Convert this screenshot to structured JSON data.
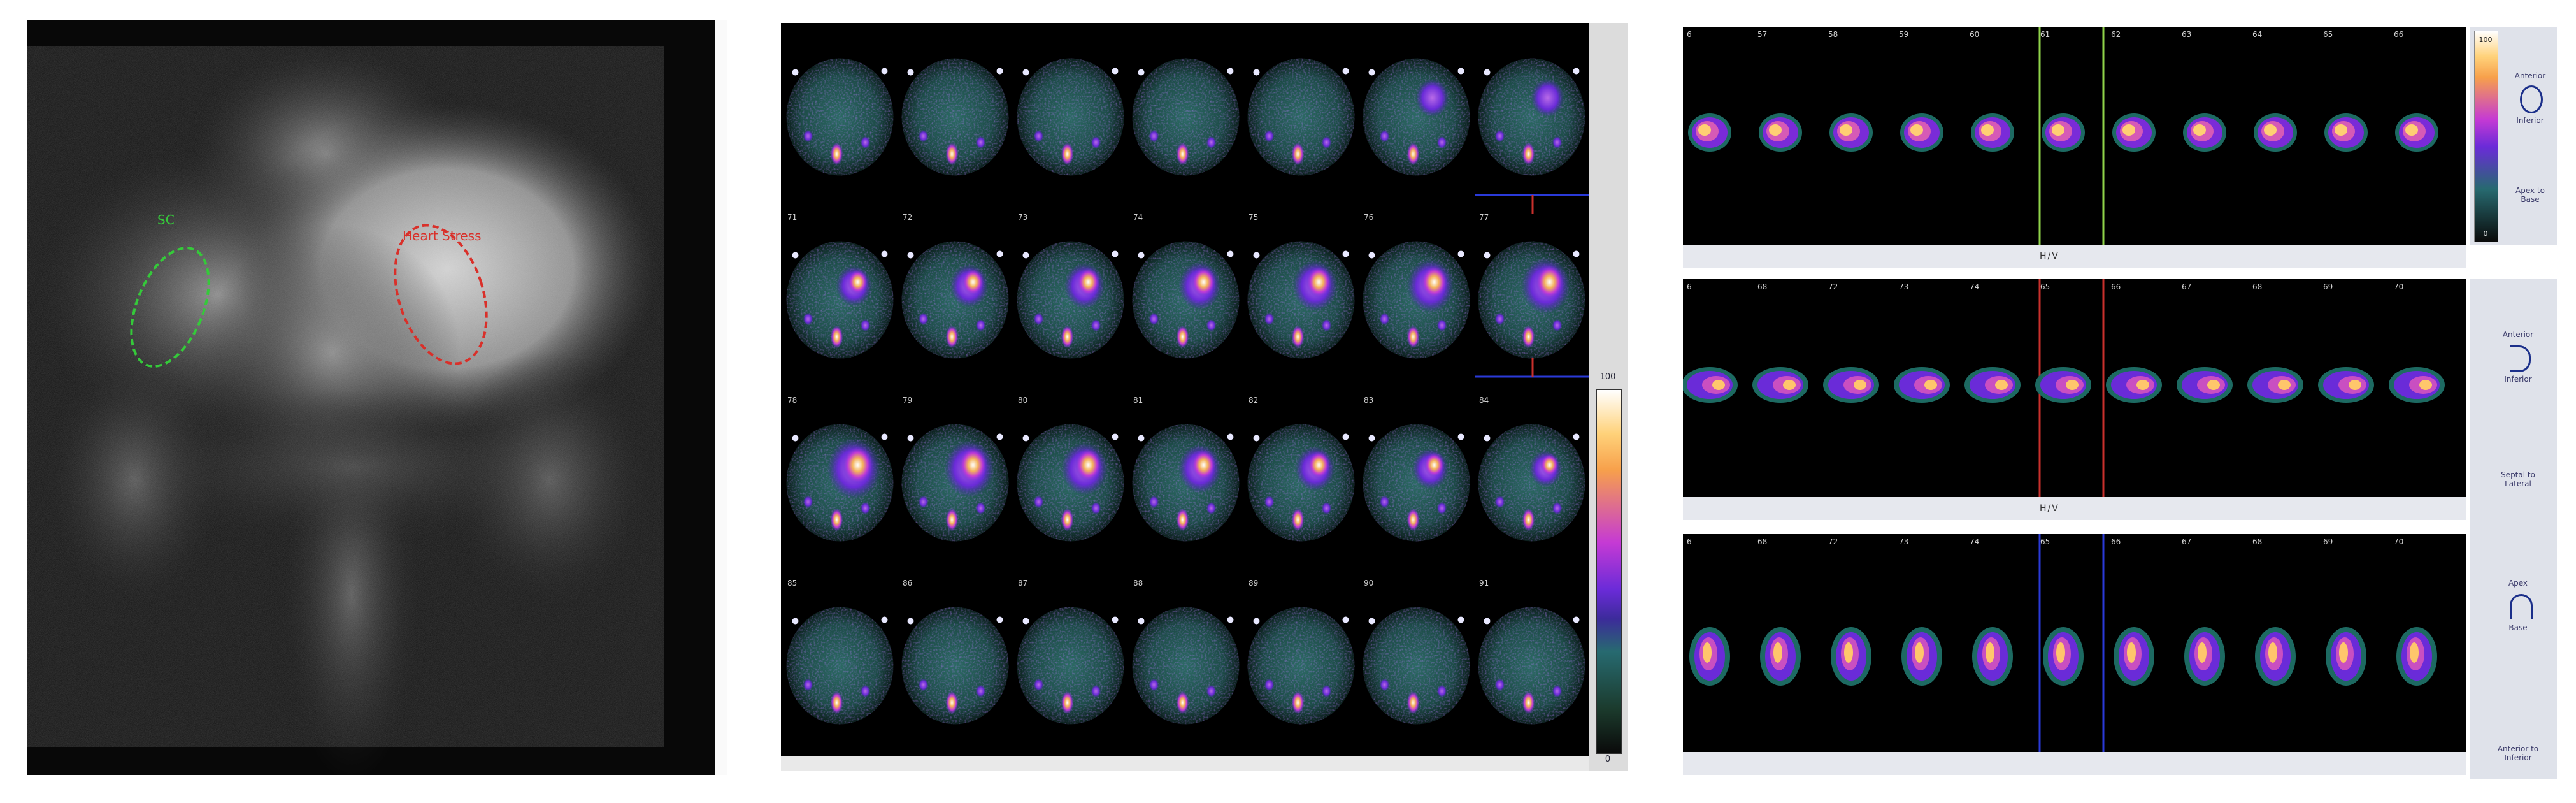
{
  "planar_image": {
    "roi_left_label": "SC",
    "roi_right_label": "Heart Stress"
  },
  "spect_slices": {
    "row_labels": [
      [
        "",
        "",
        "",
        "",
        "",
        "",
        ""
      ],
      [
        "71",
        "72",
        "73",
        "74",
        "75",
        "76",
        "77"
      ],
      [
        "78",
        "79",
        "80",
        "81",
        "82",
        "83",
        "84"
      ],
      [
        "85",
        "86",
        "87",
        "88",
        "89",
        "90",
        "91"
      ]
    ],
    "scale_max": "100",
    "scale_min": "0"
  },
  "views": {
    "row_headers": [
      [
        "6",
        "57",
        "58",
        "59",
        "60",
        "61",
        "62",
        "63",
        "64",
        "65",
        "66"
      ],
      [
        "6",
        "68",
        "72",
        "73",
        "74",
        "65",
        "66",
        "67",
        "68",
        "69",
        "70"
      ],
      [
        "6",
        "68",
        "72",
        "73",
        "74",
        "65",
        "66",
        "67",
        "68",
        "69",
        "70"
      ]
    ],
    "bar_labels": [
      "H/V",
      "H/V",
      ""
    ],
    "side_labels": [
      {
        "top": "Anterior",
        "mid": "Inferior",
        "bottom": "Apex to Base"
      },
      {
        "top": "Anterior",
        "mid": "Inferior",
        "bottom": "Septal to Lateral"
      },
      {
        "top": "Apex",
        "mid": "Base",
        "bottom": "Anterior to Inferior"
      }
    ],
    "scale_top": "100",
    "scale_bottom": "0"
  },
  "colors": {
    "roi_left": "#35c93a",
    "roi_right": "#d9302a",
    "grid_line_green": "#8fd34a",
    "grid_line_red": "#c9302c",
    "grid_line_blue": "#2a3ad8"
  }
}
